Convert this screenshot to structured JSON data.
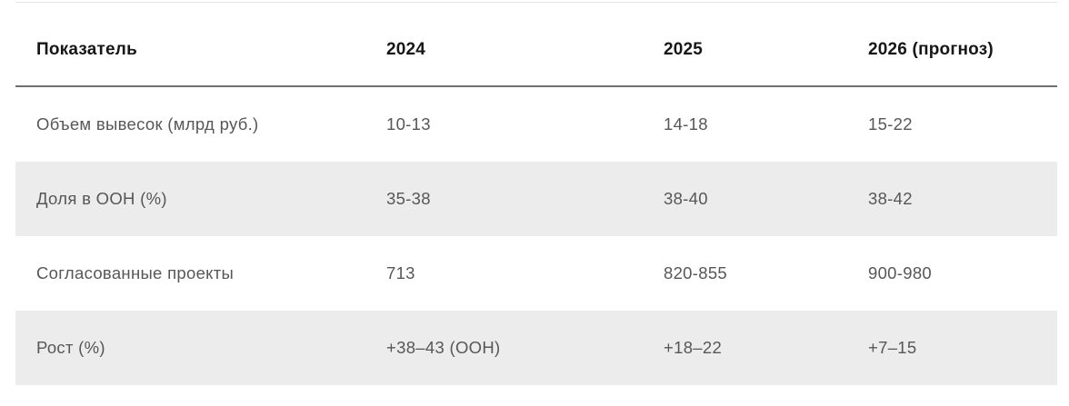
{
  "chart_data": {
    "type": "table",
    "columns": [
      "Показатель",
      "2024",
      "2025",
      "2026 (прогноз)"
    ],
    "rows": [
      {
        "label": "Объем вывесок (млрд руб.)",
        "values": [
          "10-13",
          "14-18",
          "15-22"
        ]
      },
      {
        "label": "Доля в OOH (%)",
        "values": [
          "35-38",
          "38-40",
          "38-42"
        ]
      },
      {
        "label": "Согласованные проекты",
        "values": [
          "713",
          "820-855",
          "900-980"
        ]
      },
      {
        "label": "Рост (%)",
        "values": [
          "+38–43 (OOH)",
          "+18–22",
          "+7–15"
        ]
      }
    ],
    "layout": {
      "striped_rows": true,
      "stripe_rows_indexes": [
        1,
        3
      ],
      "header_rule": true
    }
  },
  "colors": {
    "background": "#ffffff",
    "header_text": "#161616",
    "body_text": "#575757",
    "row_stripe": "#ececec",
    "header_rule": "#6f6f6f",
    "top_line": "#e6e6e6"
  }
}
